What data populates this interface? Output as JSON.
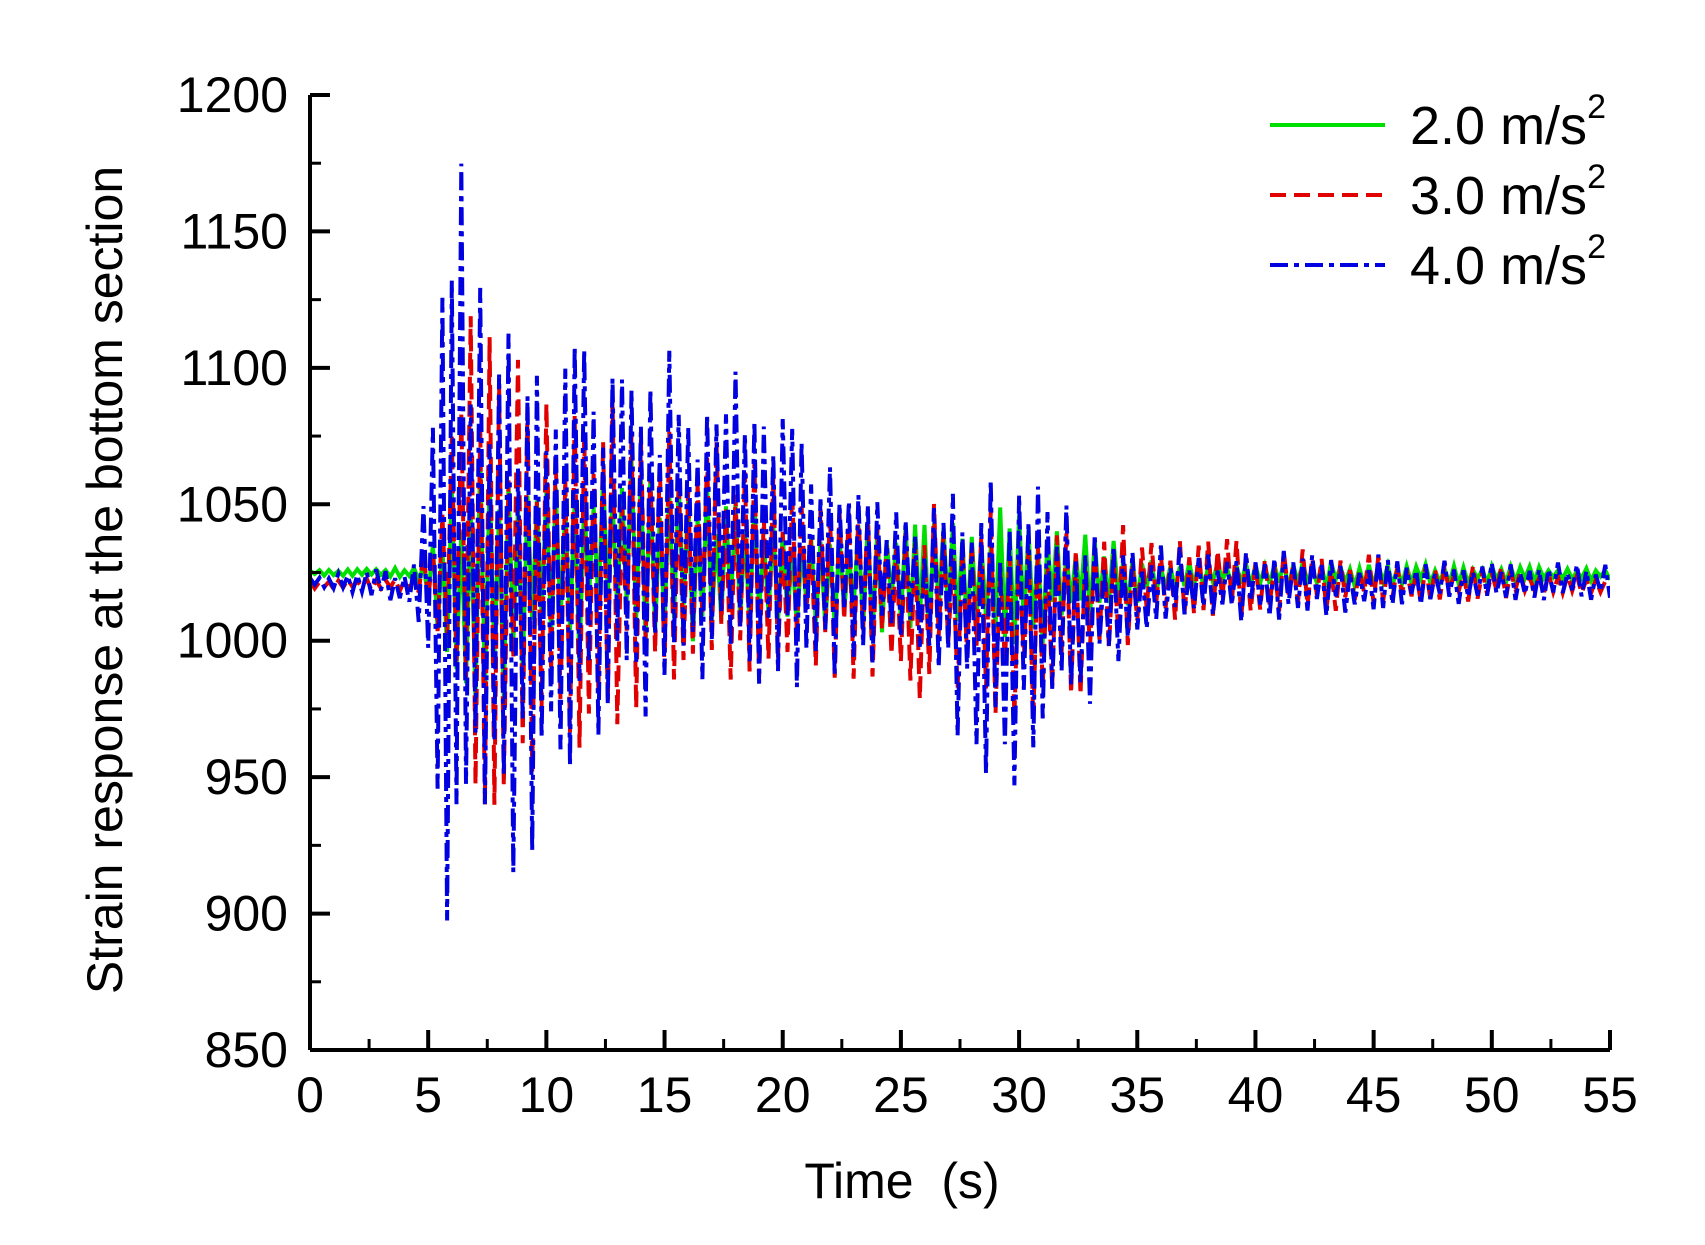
{
  "chart_data": {
    "type": "line",
    "title": "",
    "xlabel": "Time  (s)",
    "ylabel": "Strain response at the bottom section",
    "xlim": [
      0,
      55
    ],
    "ylim": [
      850,
      1200
    ],
    "x_ticks": [
      0,
      5,
      10,
      15,
      20,
      25,
      30,
      35,
      40,
      45,
      50,
      55
    ],
    "x_tick_labels": [
      "0",
      "5",
      "10",
      "15",
      "20",
      "25",
      "30",
      "35",
      "40",
      "45",
      "50",
      "55"
    ],
    "y_ticks": [
      850,
      900,
      950,
      1000,
      1050,
      1100,
      1150,
      1200
    ],
    "y_tick_labels": [
      "850",
      "900",
      "950",
      "1000",
      "1050",
      "1100",
      "1150",
      "1200"
    ],
    "grid": false,
    "legend_position": "top-right",
    "series": [
      {
        "name": "2.0 m/s",
        "unit_superscript": "2",
        "color": "#00e000",
        "dash": "solid",
        "sample_dt": 0.2,
        "x": [
          0,
          55
        ],
        "envelope": [
          {
            "t": 0,
            "lo": 1024,
            "hi": 1026
          },
          {
            "t": 4.5,
            "lo": 1023,
            "hi": 1027
          },
          {
            "t": 5.5,
            "lo": 1000,
            "hi": 1040
          },
          {
            "t": 6.2,
            "lo": 960,
            "hi": 1070
          },
          {
            "t": 7.0,
            "lo": 960,
            "hi": 1070
          },
          {
            "t": 9.0,
            "lo": 985,
            "hi": 1060
          },
          {
            "t": 13.8,
            "lo": 995,
            "hi": 1072
          },
          {
            "t": 20.0,
            "lo": 1005,
            "hi": 1045
          },
          {
            "t": 30.5,
            "lo": 995,
            "hi": 1050
          },
          {
            "t": 36.0,
            "lo": 1018,
            "hi": 1030
          },
          {
            "t": 55,
            "lo": 1022,
            "hi": 1027
          }
        ]
      },
      {
        "name": "3.0 m/s",
        "unit_superscript": "2",
        "color": "#e00000",
        "dash": "dashed",
        "sample_dt": 0.2,
        "x": [
          0,
          55
        ],
        "envelope": [
          {
            "t": 0,
            "lo": 1019,
            "hi": 1022
          },
          {
            "t": 4.5,
            "lo": 1018,
            "hi": 1024
          },
          {
            "t": 5.5,
            "lo": 990,
            "hi": 1060
          },
          {
            "t": 7.0,
            "lo": 915,
            "hi": 1147
          },
          {
            "t": 9.5,
            "lo": 950,
            "hi": 1090
          },
          {
            "t": 14.3,
            "lo": 967,
            "hi": 1090
          },
          {
            "t": 20.0,
            "lo": 990,
            "hi": 1060
          },
          {
            "t": 31.0,
            "lo": 968,
            "hi": 1050
          },
          {
            "t": 36.0,
            "lo": 1005,
            "hi": 1040
          },
          {
            "t": 55,
            "lo": 1018,
            "hi": 1023
          }
        ]
      },
      {
        "name": "4.0 m/s",
        "unit_superscript": "2",
        "color": "#0000e0",
        "dash": "dashdot",
        "sample_dt": 0.2,
        "x": [
          0,
          55
        ],
        "envelope": [
          {
            "t": 0,
            "lo": 1020,
            "hi": 1024
          },
          {
            "t": 4.5,
            "lo": 1012,
            "hi": 1028
          },
          {
            "t": 6.2,
            "lo": 860,
            "hi": 1182
          },
          {
            "t": 8.8,
            "lo": 908,
            "hi": 1108
          },
          {
            "t": 12.9,
            "lo": 968,
            "hi": 1117
          },
          {
            "t": 18.3,
            "lo": 975,
            "hi": 1098
          },
          {
            "t": 25.0,
            "lo": 995,
            "hi": 1048
          },
          {
            "t": 28.5,
            "lo": 947,
            "hi": 1068
          },
          {
            "t": 30.3,
            "lo": 947,
            "hi": 1060
          },
          {
            "t": 36.0,
            "lo": 1005,
            "hi": 1035
          },
          {
            "t": 55,
            "lo": 1015,
            "hi": 1028
          }
        ]
      }
    ]
  }
}
